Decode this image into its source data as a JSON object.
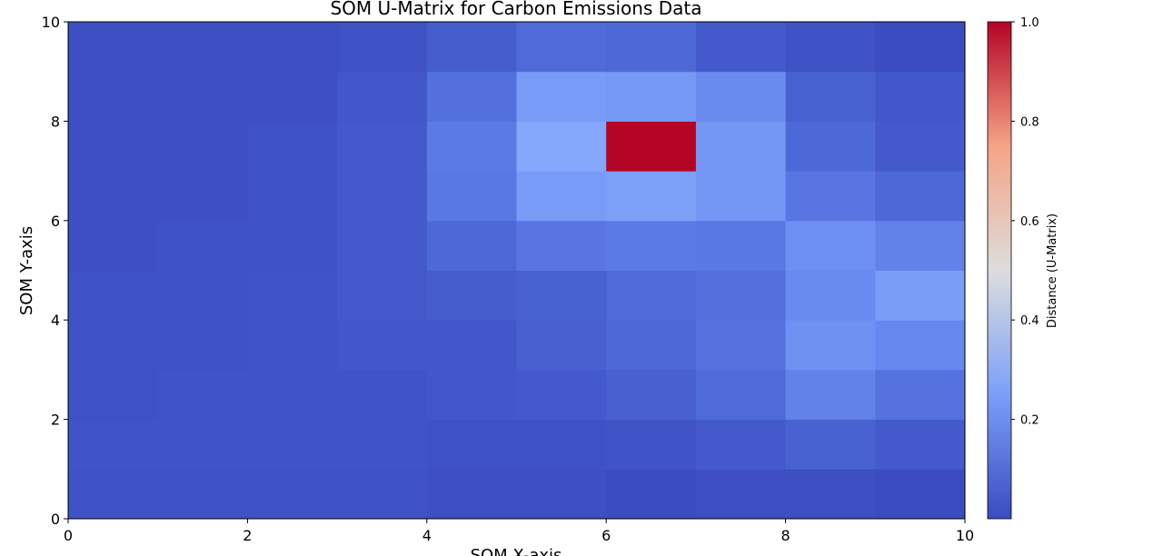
{
  "chart_data": {
    "type": "heatmap",
    "title": "SOM U-Matrix for Carbon Emissions Data",
    "xlabel": "SOM X-axis",
    "ylabel": "SOM Y-axis",
    "xlim": [
      0,
      10
    ],
    "ylim": [
      0,
      10
    ],
    "xticks": [
      "0",
      "2",
      "4",
      "6",
      "8",
      "10"
    ],
    "yticks": [
      "0",
      "2",
      "4",
      "6",
      "8",
      "10"
    ],
    "colormap": "coolwarm",
    "colorbar": {
      "label": "Distance (U-Matrix)",
      "range": [
        0.0,
        1.0
      ],
      "ticks": [
        "0.2",
        "0.4",
        "0.6",
        "0.8",
        "1.0"
      ]
    },
    "rows_bottom_to_top": [
      [
        0.02,
        0.02,
        0.02,
        0.02,
        0.01,
        0.01,
        0.0,
        0.01,
        0.01,
        0.0
      ],
      [
        0.03,
        0.03,
        0.03,
        0.03,
        0.02,
        0.02,
        0.03,
        0.05,
        0.08,
        0.05
      ],
      [
        0.02,
        0.03,
        0.03,
        0.03,
        0.04,
        0.05,
        0.07,
        0.11,
        0.2,
        0.14
      ],
      [
        0.02,
        0.02,
        0.03,
        0.04,
        0.04,
        0.07,
        0.1,
        0.14,
        0.26,
        0.22
      ],
      [
        0.02,
        0.02,
        0.03,
        0.05,
        0.06,
        0.08,
        0.11,
        0.13,
        0.23,
        0.31
      ],
      [
        0.01,
        0.02,
        0.02,
        0.05,
        0.1,
        0.15,
        0.17,
        0.16,
        0.25,
        0.2
      ],
      [
        0.01,
        0.01,
        0.02,
        0.05,
        0.16,
        0.3,
        0.32,
        0.28,
        0.15,
        0.1
      ],
      [
        0.01,
        0.01,
        0.02,
        0.05,
        0.17,
        0.35,
        1.0,
        0.28,
        0.1,
        0.05
      ],
      [
        0.01,
        0.01,
        0.01,
        0.04,
        0.13,
        0.3,
        0.29,
        0.24,
        0.08,
        0.04
      ],
      [
        0.01,
        0.01,
        0.01,
        0.02,
        0.06,
        0.11,
        0.1,
        0.05,
        0.02,
        0.0
      ]
    ]
  }
}
